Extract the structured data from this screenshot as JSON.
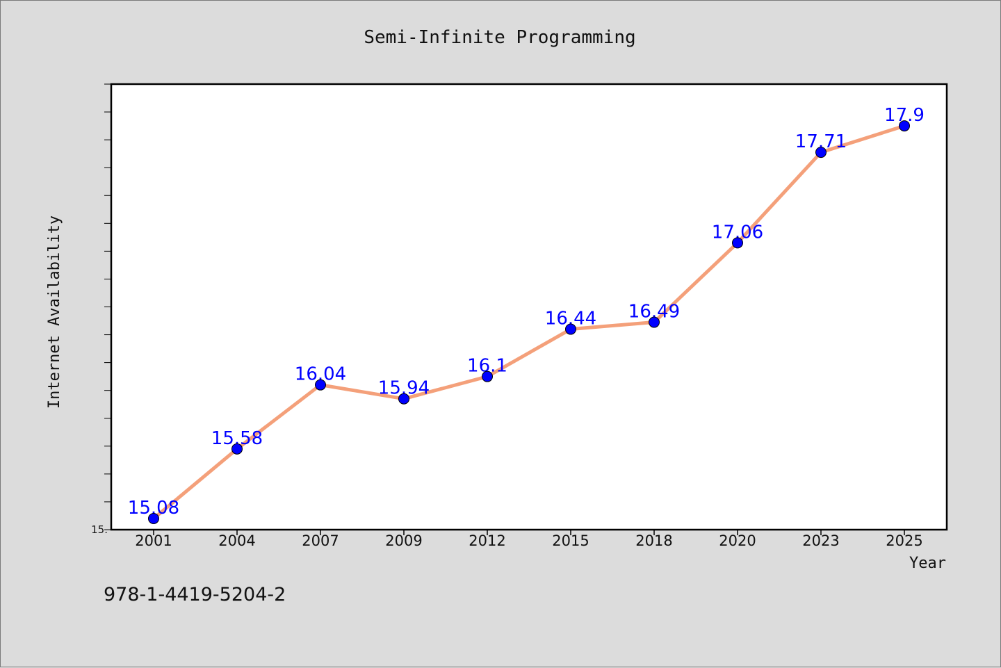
{
  "chart_data": {
    "type": "line",
    "title": "Semi-Infinite Programming",
    "xlabel": "Year",
    "ylabel": "Internet Availability",
    "categories": [
      "2001",
      "2004",
      "2007",
      "2009",
      "2012",
      "2015",
      "2018",
      "2020",
      "2023",
      "2025"
    ],
    "series": [
      {
        "values": [
          15.08,
          15.58,
          16.04,
          15.94,
          16.1,
          16.44,
          16.49,
          17.06,
          17.71,
          17.9
        ]
      }
    ],
    "data_labels": [
      "15.08",
      "15.58",
      "16.04",
      "15.94",
      "16.1",
      "16.44",
      "16.49",
      "17.06",
      "17.71",
      "17.9"
    ],
    "y_tick_labels": [
      "15."
    ],
    "ylim": [
      15.0,
      18.2
    ],
    "grid": false,
    "colors": {
      "line": "#f4a07a",
      "marker": "#0000ff",
      "data_label": "#0000ff",
      "plot_background": "#ffffff",
      "page_background": "#dcdcdc"
    }
  },
  "footnote": "978-1-4419-5204-2"
}
